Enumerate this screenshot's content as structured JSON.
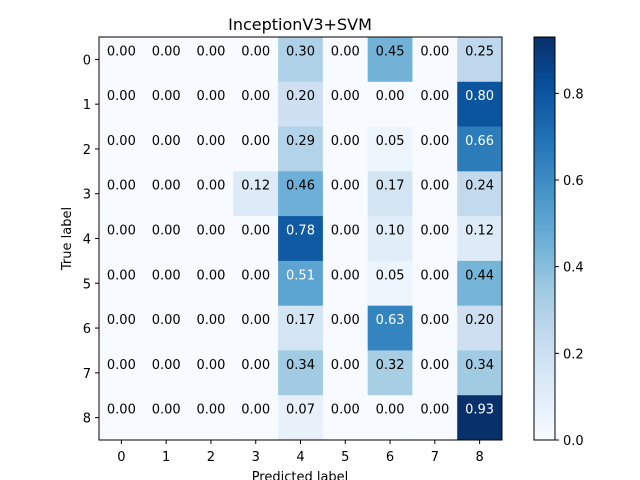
{
  "chart_data": {
    "type": "heatmap",
    "title": "InceptionV3+SVM",
    "xlabel": "Predicted label",
    "ylabel": "True label",
    "x_categories": [
      "0",
      "1",
      "2",
      "3",
      "4",
      "5",
      "6",
      "7",
      "8"
    ],
    "y_categories": [
      "0",
      "1",
      "2",
      "3",
      "4",
      "5",
      "6",
      "7",
      "8"
    ],
    "values": [
      [
        0.0,
        0.0,
        0.0,
        0.0,
        0.3,
        0.0,
        0.45,
        0.0,
        0.25
      ],
      [
        0.0,
        0.0,
        0.0,
        0.0,
        0.2,
        0.0,
        0.0,
        0.0,
        0.8
      ],
      [
        0.0,
        0.0,
        0.0,
        0.0,
        0.29,
        0.0,
        0.05,
        0.0,
        0.66
      ],
      [
        0.0,
        0.0,
        0.0,
        0.12,
        0.46,
        0.0,
        0.17,
        0.0,
        0.24
      ],
      [
        0.0,
        0.0,
        0.0,
        0.0,
        0.78,
        0.0,
        0.1,
        0.0,
        0.12
      ],
      [
        0.0,
        0.0,
        0.0,
        0.0,
        0.51,
        0.0,
        0.05,
        0.0,
        0.44
      ],
      [
        0.0,
        0.0,
        0.0,
        0.0,
        0.17,
        0.0,
        0.63,
        0.0,
        0.2
      ],
      [
        0.0,
        0.0,
        0.0,
        0.0,
        0.34,
        0.0,
        0.32,
        0.0,
        0.34
      ],
      [
        0.0,
        0.0,
        0.0,
        0.0,
        0.07,
        0.0,
        0.0,
        0.0,
        0.93
      ]
    ],
    "colormap": "Blues",
    "colorbar": {
      "min": 0.0,
      "max": 0.93,
      "ticks": [
        0.0,
        0.2,
        0.4,
        0.6,
        0.8
      ],
      "tick_labels": [
        "0.0",
        "0.2",
        "0.4",
        "0.6",
        "0.8"
      ]
    },
    "grid": false,
    "legend": "colorbar-right"
  }
}
